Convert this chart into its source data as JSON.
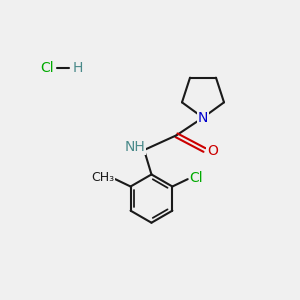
{
  "background_color": "#f0f0f0",
  "bond_color": "#1a1a1a",
  "n_color": "#0000cc",
  "o_color": "#cc0000",
  "cl_color": "#00aa00",
  "h_color": "#4a8a8a",
  "font_size_atoms": 10,
  "font_size_small": 9,
  "linewidth": 1.5,
  "fig_width": 3.0,
  "fig_height": 3.0,
  "dpi": 100,
  "xlim": [
    0,
    10
  ],
  "ylim": [
    0,
    10
  ]
}
